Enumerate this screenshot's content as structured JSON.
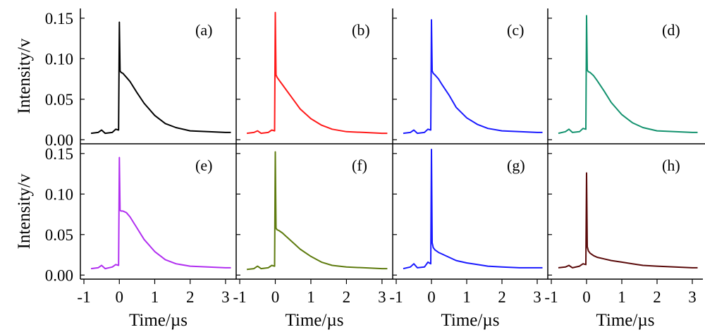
{
  "chart_data": {
    "type": "line",
    "layout": "2x4 small multiples sharing axes",
    "xlabel": "Time/µs",
    "ylabel": "Intensity/v",
    "xlim": [
      -1.1,
      3.3
    ],
    "ylim": [
      -0.005,
      0.162
    ],
    "x_ticks": [
      -1,
      0,
      1,
      2,
      3
    ],
    "x_tick_labels": [
      "-1",
      "0",
      "1",
      "2",
      "3"
    ],
    "y_ticks": [
      0.0,
      0.05,
      0.1,
      0.15
    ],
    "y_tick_labels": [
      "0.00",
      "0.05",
      "0.10",
      "0.15"
    ],
    "grid": false,
    "panels": [
      {
        "label": "(a)",
        "color": "#000000",
        "x": [
          -0.8,
          -0.6,
          -0.5,
          -0.4,
          -0.2,
          -0.1,
          -0.02,
          0.0,
          0.02,
          0.05,
          0.1,
          0.2,
          0.3,
          0.5,
          0.7,
          1.0,
          1.3,
          1.6,
          2.0,
          2.5,
          3.0,
          3.15
        ],
        "y": [
          0.008,
          0.009,
          0.012,
          0.008,
          0.009,
          0.013,
          0.012,
          0.145,
          0.085,
          0.083,
          0.082,
          0.077,
          0.072,
          0.058,
          0.045,
          0.03,
          0.02,
          0.015,
          0.011,
          0.01,
          0.009,
          0.009
        ]
      },
      {
        "label": "(b)",
        "color": "#ff1a1a",
        "x": [
          -0.8,
          -0.6,
          -0.5,
          -0.4,
          -0.2,
          -0.1,
          -0.02,
          0.0,
          0.02,
          0.05,
          0.1,
          0.2,
          0.3,
          0.5,
          0.7,
          1.0,
          1.3,
          1.6,
          2.0,
          2.5,
          3.0,
          3.15
        ],
        "y": [
          0.008,
          0.009,
          0.011,
          0.008,
          0.009,
          0.012,
          0.011,
          0.157,
          0.08,
          0.077,
          0.074,
          0.068,
          0.062,
          0.05,
          0.038,
          0.026,
          0.018,
          0.013,
          0.01,
          0.009,
          0.008,
          0.008
        ]
      },
      {
        "label": "(c)",
        "color": "#1a1aff",
        "x": [
          -0.8,
          -0.6,
          -0.5,
          -0.4,
          -0.2,
          -0.1,
          -0.02,
          0.0,
          0.02,
          0.05,
          0.1,
          0.2,
          0.3,
          0.5,
          0.7,
          1.0,
          1.3,
          1.6,
          2.0,
          2.5,
          3.0,
          3.15
        ],
        "y": [
          0.008,
          0.009,
          0.012,
          0.008,
          0.009,
          0.013,
          0.012,
          0.148,
          0.085,
          0.082,
          0.08,
          0.075,
          0.068,
          0.055,
          0.04,
          0.027,
          0.019,
          0.014,
          0.011,
          0.01,
          0.009,
          0.009
        ]
      },
      {
        "label": "(d)",
        "color": "#13926e",
        "x": [
          -0.8,
          -0.6,
          -0.5,
          -0.4,
          -0.2,
          -0.1,
          -0.02,
          0.0,
          0.02,
          0.05,
          0.1,
          0.2,
          0.3,
          0.5,
          0.7,
          1.0,
          1.3,
          1.6,
          2.0,
          2.5,
          3.0,
          3.15
        ],
        "y": [
          0.008,
          0.01,
          0.013,
          0.009,
          0.01,
          0.014,
          0.013,
          0.153,
          0.086,
          0.084,
          0.083,
          0.079,
          0.073,
          0.06,
          0.046,
          0.031,
          0.021,
          0.015,
          0.011,
          0.01,
          0.009,
          0.009
        ]
      },
      {
        "label": "(e)",
        "color": "#b12ff0",
        "x": [
          -0.8,
          -0.6,
          -0.5,
          -0.4,
          -0.2,
          -0.1,
          -0.02,
          0.0,
          0.02,
          0.05,
          0.1,
          0.2,
          0.3,
          0.5,
          0.7,
          1.0,
          1.3,
          1.6,
          2.0,
          2.5,
          3.0,
          3.15
        ],
        "y": [
          0.008,
          0.009,
          0.012,
          0.008,
          0.01,
          0.013,
          0.012,
          0.145,
          0.08,
          0.079,
          0.079,
          0.077,
          0.072,
          0.058,
          0.044,
          0.029,
          0.019,
          0.014,
          0.011,
          0.01,
          0.009,
          0.009
        ]
      },
      {
        "label": "(f)",
        "color": "#5e7b0e",
        "x": [
          -0.8,
          -0.6,
          -0.5,
          -0.4,
          -0.2,
          -0.1,
          -0.02,
          0.0,
          0.02,
          0.05,
          0.1,
          0.2,
          0.3,
          0.5,
          0.7,
          1.0,
          1.3,
          1.6,
          2.0,
          2.5,
          3.0,
          3.15
        ],
        "y": [
          0.007,
          0.008,
          0.011,
          0.008,
          0.009,
          0.012,
          0.011,
          0.152,
          0.058,
          0.056,
          0.055,
          0.052,
          0.048,
          0.04,
          0.032,
          0.023,
          0.016,
          0.012,
          0.01,
          0.009,
          0.008,
          0.008
        ]
      },
      {
        "label": "(g)",
        "color": "#1a1aff",
        "x": [
          -0.8,
          -0.6,
          -0.5,
          -0.4,
          -0.2,
          -0.1,
          -0.02,
          0.0,
          0.02,
          0.05,
          0.1,
          0.2,
          0.3,
          0.5,
          0.7,
          1.0,
          1.3,
          1.6,
          2.0,
          2.5,
          3.0,
          3.15
        ],
        "y": [
          0.008,
          0.01,
          0.014,
          0.009,
          0.01,
          0.016,
          0.014,
          0.155,
          0.04,
          0.034,
          0.031,
          0.028,
          0.026,
          0.022,
          0.018,
          0.015,
          0.013,
          0.011,
          0.01,
          0.009,
          0.009,
          0.009
        ]
      },
      {
        "label": "(h)",
        "color": "#5a0a0a",
        "x": [
          -0.8,
          -0.6,
          -0.5,
          -0.4,
          -0.2,
          -0.1,
          -0.02,
          0.0,
          0.02,
          0.05,
          0.1,
          0.2,
          0.3,
          0.5,
          0.7,
          1.0,
          1.3,
          1.6,
          2.0,
          2.5,
          3.0,
          3.15
        ],
        "y": [
          0.009,
          0.01,
          0.012,
          0.009,
          0.011,
          0.014,
          0.013,
          0.126,
          0.035,
          0.03,
          0.027,
          0.024,
          0.022,
          0.02,
          0.018,
          0.016,
          0.014,
          0.012,
          0.011,
          0.01,
          0.009,
          0.009
        ]
      }
    ]
  }
}
